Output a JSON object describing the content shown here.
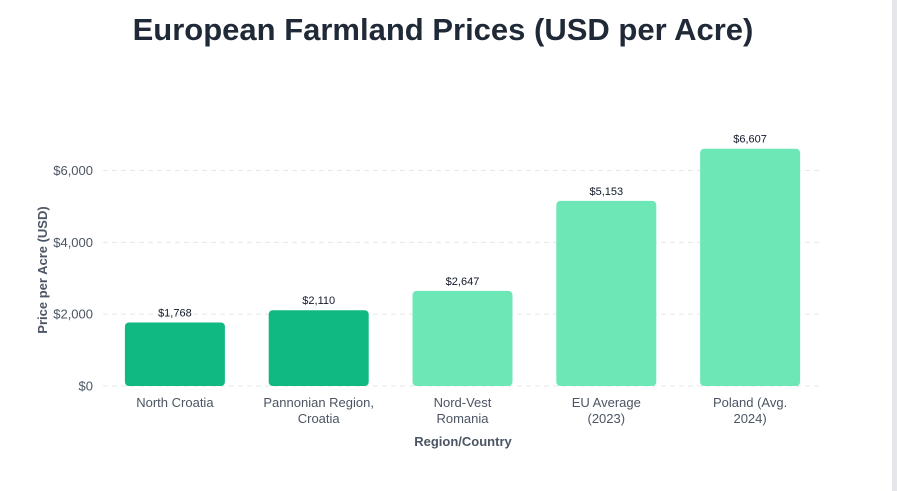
{
  "page": {
    "title": "European Farmland Prices (USD per Acre)"
  },
  "chart_data": {
    "type": "bar",
    "title": "European Farmland Prices (USD per Acre)",
    "xlabel": "Region/Country",
    "ylabel": "Price per Acre (USD)",
    "ylim": [
      0,
      7000
    ],
    "yticks": [
      0,
      2000,
      4000,
      6000
    ],
    "ytick_labels": [
      "$0",
      "$2,000",
      "$4,000",
      "$6,000"
    ],
    "grid": true,
    "categories": [
      [
        "North Croatia"
      ],
      [
        "Pannonian Region,",
        "Croatia"
      ],
      [
        "Nord-Vest",
        "Romania"
      ],
      [
        "EU Average",
        "(2023)"
      ],
      [
        "Poland (Avg.",
        "2024)"
      ]
    ],
    "values": [
      1768,
      2110,
      2647,
      5153,
      6607
    ],
    "data_labels": [
      "$1,768",
      "$2,110",
      "$2,647",
      "$5,153",
      "$6,607"
    ],
    "colors": [
      "#10b981",
      "#10b981",
      "#6ee7b7",
      "#6ee7b7",
      "#6ee7b7"
    ]
  }
}
